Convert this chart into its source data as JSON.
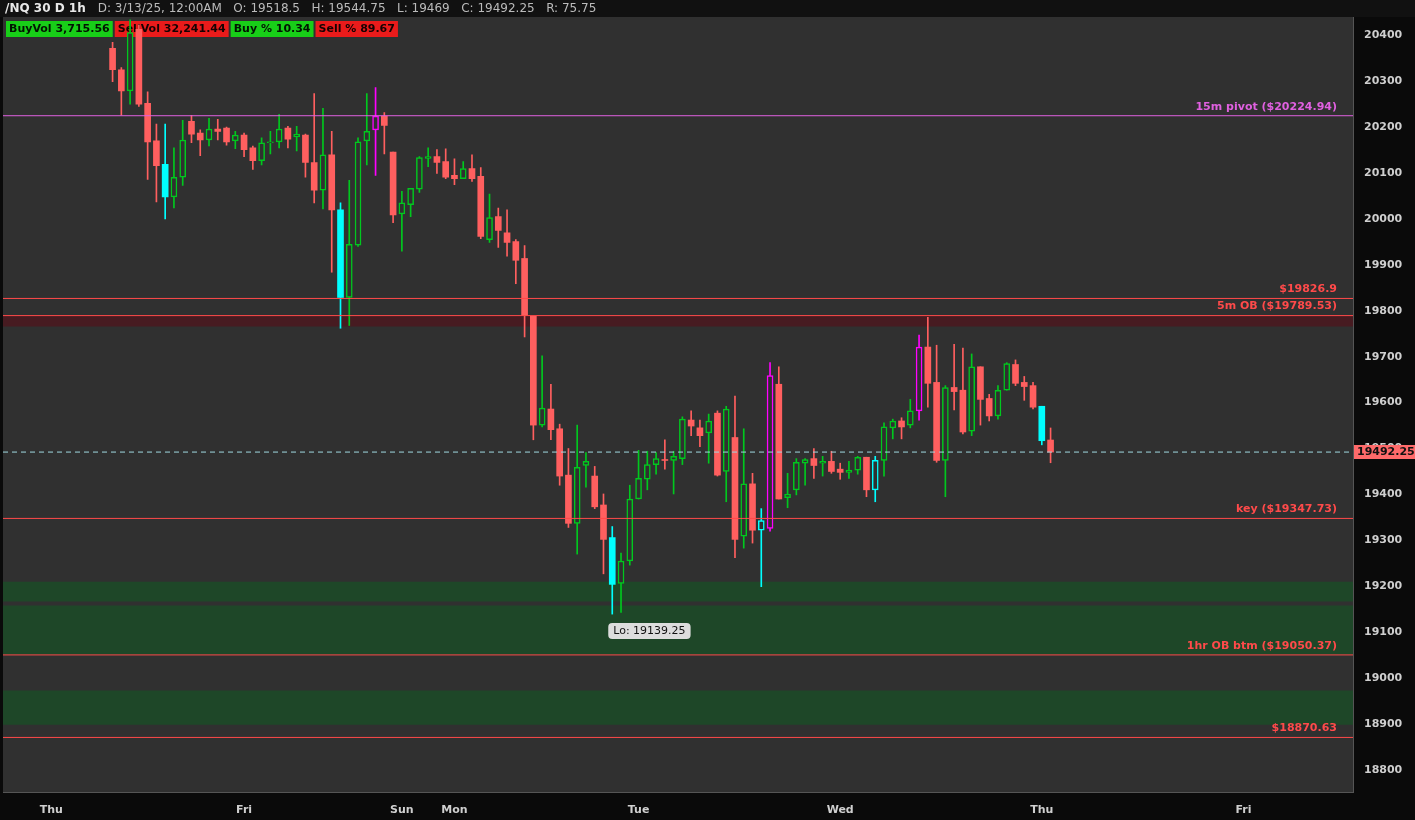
{
  "chart_data": {
    "type": "candlestick",
    "title": "/NQ 30 D 1h",
    "subtitle": "D: 3/13/25, 12:00AM   O: 19518.5   H: 19544.75   L: 19469   C: 19492.25   R: 75.75",
    "categories": [
      null,
      null,
      null,
      null,
      null,
      "Thu",
      null,
      null,
      null,
      null,
      null,
      null,
      null,
      null,
      null,
      null,
      null,
      null,
      null,
      null,
      null,
      null,
      null,
      null,
      null,
      null,
      null,
      "Fri",
      null,
      null,
      null,
      null,
      null,
      null,
      null,
      null,
      null,
      null,
      null,
      null,
      null,
      null,
      null,
      null,
      null,
      "Sun",
      null,
      null,
      null,
      null,
      null,
      "Mon",
      null,
      null,
      null,
      null,
      null,
      null,
      null,
      null,
      null,
      null,
      null,
      null,
      null,
      null,
      null,
      null,
      null,
      null,
      null,
      null,
      "Tue",
      null,
      null,
      null,
      null,
      null,
      null,
      null,
      null,
      null,
      null,
      null,
      null,
      null,
      null,
      null,
      null,
      null,
      null,
      null,
      null,
      null,
      null,
      "Wed",
      null,
      null,
      null,
      null,
      null,
      null,
      null,
      null,
      null,
      null,
      null,
      null,
      null,
      null,
      null,
      null,
      null,
      null,
      null,
      null,
      null,
      null,
      "Thu",
      null,
      null,
      null,
      null,
      null,
      null,
      null,
      null,
      null,
      null,
      null,
      null,
      null,
      null,
      null,
      null,
      null,
      null,
      null,
      null,
      null,
      null,
      "Fri",
      null,
      null,
      null,
      null,
      null,
      null,
      null,
      null,
      null,
      null,
      null,
      null
    ],
    "ohlc": [
      null,
      null,
      null,
      null,
      null,
      null,
      null,
      null,
      null,
      null,
      null,
      null,
      [
        20372,
        20385,
        20299,
        20325
      ],
      [
        20325,
        20330,
        20226,
        20279
      ],
      [
        20279,
        20434,
        20250,
        20406
      ],
      [
        20413,
        20423,
        20245,
        20250
      ],
      [
        20252,
        20277,
        20086,
        20168
      ],
      [
        20170,
        20207,
        20037,
        20116
      ],
      [
        20119,
        20207,
        20000,
        20048
      ],
      [
        20048,
        20155,
        20024,
        20091
      ],
      [
        20091,
        20215,
        20073,
        20172
      ],
      [
        20213,
        20226,
        20166,
        20185
      ],
      [
        20187,
        20194,
        20138,
        20172
      ],
      [
        20172,
        20219,
        20159,
        20196
      ],
      [
        20196,
        20217,
        20172,
        20191
      ],
      [
        20198,
        20200,
        20161,
        20168
      ],
      [
        20170,
        20191,
        20153,
        20183
      ],
      [
        20183,
        20187,
        20136,
        20151
      ],
      [
        20155,
        20159,
        20108,
        20127
      ],
      [
        20127,
        20177,
        20118,
        20166
      ],
      [
        20166,
        20191,
        20142,
        20168
      ],
      [
        20168,
        20228,
        20155,
        20196
      ],
      [
        20198,
        20202,
        20155,
        20174
      ],
      [
        20179,
        20202,
        20148,
        20185
      ],
      [
        20183,
        20185,
        20091,
        20123
      ],
      [
        20123,
        20273,
        20035,
        20063
      ],
      [
        20063,
        20241,
        20022,
        20140
      ],
      [
        20140,
        20191,
        19884,
        20020
      ],
      [
        20020,
        20035,
        19762,
        19829
      ],
      [
        19829,
        20084,
        19768,
        19945
      ],
      [
        19943,
        20177,
        19940,
        20168
      ],
      [
        20170,
        20273,
        20118,
        20191
      ],
      [
        20194,
        20286,
        20095,
        20224
      ],
      [
        20224,
        20232,
        20142,
        20204
      ],
      [
        20146,
        20146,
        19992,
        20009
      ],
      [
        20011,
        20060,
        19930,
        20035
      ],
      [
        20031,
        20067,
        20005,
        20067
      ],
      [
        20065,
        20136,
        20058,
        20134
      ],
      [
        20132,
        20155,
        20114,
        20136
      ],
      [
        20136,
        20151,
        20099,
        20123
      ],
      [
        20125,
        20153,
        20088,
        20091
      ],
      [
        20095,
        20131,
        20075,
        20088
      ],
      [
        20088,
        20125,
        20088,
        20110
      ],
      [
        20110,
        20140,
        20082,
        20088
      ],
      [
        20093,
        20112,
        19957,
        19962
      ],
      [
        19955,
        20054,
        19949,
        20003
      ],
      [
        20005,
        20024,
        19938,
        19975
      ],
      [
        19970,
        20020,
        19919,
        19949
      ],
      [
        19951,
        19955,
        19859,
        19910
      ],
      [
        19914,
        19942,
        19743,
        19790
      ],
      [
        19788,
        19788,
        19519,
        19551
      ],
      [
        19551,
        19702,
        19547,
        19588
      ],
      [
        19586,
        19640,
        19519,
        19541
      ],
      [
        19543,
        19553,
        19420,
        19440
      ],
      [
        19442,
        19500,
        19328,
        19337
      ],
      [
        19337,
        19551,
        19270,
        19459
      ],
      [
        19463,
        19491,
        19416,
        19472
      ],
      [
        19440,
        19461,
        19369,
        19373
      ],
      [
        19377,
        19401,
        19227,
        19302
      ],
      [
        19306,
        19330,
        19139.25,
        19204
      ],
      [
        19206,
        19272,
        19143,
        19255
      ],
      [
        19255,
        19420,
        19246,
        19390
      ],
      [
        19390,
        19496,
        19390,
        19435
      ],
      [
        19433,
        19494,
        19410,
        19465
      ],
      [
        19465,
        19491,
        19444,
        19478
      ],
      [
        19476,
        19519,
        19455,
        19474
      ],
      [
        19474,
        19494,
        19401,
        19483
      ],
      [
        19478,
        19569,
        19465,
        19564
      ],
      [
        19562,
        19582,
        19528,
        19549
      ],
      [
        19545,
        19562,
        19504,
        19528
      ],
      [
        19534,
        19575,
        19468,
        19560
      ],
      [
        19577,
        19582,
        19440,
        19442
      ],
      [
        19450,
        19592,
        19384,
        19586
      ],
      [
        19524,
        19614,
        19262,
        19302
      ],
      [
        19309,
        19543,
        19283,
        19423
      ],
      [
        19423,
        19446,
        19294,
        19322
      ],
      [
        19322,
        19369,
        19199,
        19343
      ],
      [
        19326,
        19687,
        19320,
        19659
      ],
      [
        19640,
        19678,
        19390,
        19390
      ],
      [
        19393,
        19446,
        19371,
        19401
      ],
      [
        19410,
        19478,
        19399,
        19470
      ],
      [
        19468,
        19478,
        19420,
        19476
      ],
      [
        19478,
        19500,
        19435,
        19463
      ],
      [
        19468,
        19483,
        19440,
        19472
      ],
      [
        19472,
        19494,
        19446,
        19450
      ],
      [
        19455,
        19468,
        19433,
        19448
      ],
      [
        19448,
        19472,
        19435,
        19453
      ],
      [
        19453,
        19483,
        19444,
        19481
      ],
      [
        19481,
        19481,
        19395,
        19410
      ],
      [
        19410,
        19483,
        19384,
        19474
      ],
      [
        19474,
        19556,
        19440,
        19547
      ],
      [
        19545,
        19564,
        19521,
        19560
      ],
      [
        19560,
        19567,
        19521,
        19547
      ],
      [
        19551,
        19607,
        19545,
        19582
      ],
      [
        19582,
        19747,
        19562,
        19721
      ],
      [
        19721,
        19786,
        19590,
        19642
      ],
      [
        19644,
        19725,
        19470,
        19474
      ],
      [
        19474,
        19637,
        19395,
        19633
      ],
      [
        19633,
        19727,
        19584,
        19624
      ],
      [
        19627,
        19719,
        19532,
        19536
      ],
      [
        19538,
        19706,
        19528,
        19678
      ],
      [
        19678,
        19678,
        19551,
        19607
      ],
      [
        19609,
        19618,
        19560,
        19571
      ],
      [
        19571,
        19637,
        19564,
        19627
      ],
      [
        19627,
        19687,
        19627,
        19685
      ],
      [
        19683,
        19693,
        19637,
        19642
      ],
      [
        19644,
        19657,
        19605,
        19635
      ],
      [
        19637,
        19644,
        19586,
        19590
      ],
      [
        19592,
        19592,
        19508,
        19517
      ],
      [
        19518.5,
        19544.75,
        19469,
        19492.25
      ],
      null,
      null,
      null,
      null,
      null,
      null,
      null,
      null,
      null,
      null,
      null,
      null,
      null,
      null,
      null,
      null,
      null,
      null,
      null,
      null,
      null,
      null,
      null,
      null,
      null,
      null,
      null,
      null,
      null,
      null,
      null,
      null,
      null,
      null
    ],
    "colors": [
      null,
      null,
      null,
      null,
      null,
      null,
      null,
      null,
      null,
      null,
      null,
      null,
      "#ff5f5f",
      "#ff5f5f",
      "#00c81e",
      "#ff5f5f",
      "#ff5f5f",
      "#ff5f5f",
      "#00ffff",
      "#00c81e",
      "#00c81e",
      "#ff5f5f",
      "#ff5f5f",
      "#00c81e",
      "#ff5f5f",
      "#ff5f5f",
      "#00c81e",
      "#ff5f5f",
      "#ff5f5f",
      "#00c81e",
      "#00c81e",
      "#00c81e",
      "#ff5f5f",
      "#00c81e",
      "#ff5f5f",
      "#ff5f5f",
      "#00c81e",
      "#ff5f5f",
      "#00ffff",
      "#00c81e",
      "#00c81e",
      "#00c81e",
      "#ff00ff",
      "#ff5f5f",
      "#ff5f5f",
      "#00c81e",
      "#00c81e",
      "#00c81e",
      "#00c81e",
      "#ff5f5f",
      "#ff5f5f",
      "#ff5f5f",
      "#00c81e",
      "#ff5f5f",
      "#ff5f5f",
      "#00c81e",
      "#ff5f5f",
      "#ff5f5f",
      "#ff5f5f",
      "#ff5f5f",
      "#ff5f5f",
      "#00c81e",
      "#ff5f5f",
      "#ff5f5f",
      "#ff5f5f",
      "#00c81e",
      "#00c81e",
      "#ff5f5f",
      "#ff5f5f",
      "#00ffff",
      "#00c81e",
      "#00c81e",
      "#00c81e",
      "#00c81e",
      "#00c81e",
      "#ff5f5f",
      "#00c81e",
      "#00c81e",
      "#ff5f5f",
      "#ff5f5f",
      "#00c81e",
      "#ff5f5f",
      "#00c81e",
      "#ff5f5f",
      "#00c81e",
      "#ff5f5f",
      "#00ffff",
      "#ff00ff",
      "#ff5f5f",
      "#00c81e",
      "#00c81e",
      "#00c81e",
      "#ff5f5f",
      "#00c81e",
      "#ff5f5f",
      "#ff5f5f",
      "#00c81e",
      "#00c81e",
      "#ff5f5f",
      "#00ffff",
      "#00c81e",
      "#00c81e",
      "#ff5f5f",
      "#00c81e",
      "#ff00ff",
      "#ff5f5f",
      "#ff5f5f",
      "#00c81e",
      "#ff5f5f",
      "#ff5f5f",
      "#00c81e",
      "#ff5f5f",
      "#ff5f5f",
      "#00c81e",
      "#00c81e",
      "#ff5f5f",
      "#ff5f5f",
      "#ff5f5f",
      "#00ffff",
      "#ff5f5f",
      null,
      null,
      null,
      null,
      null,
      null,
      null,
      null,
      null,
      null,
      null,
      null,
      null,
      null,
      null,
      null,
      null,
      null,
      null,
      null,
      null,
      null,
      null,
      null,
      null,
      null,
      null,
      null,
      null,
      null,
      null,
      null,
      null,
      null
    ],
    "ylim": [
      18750,
      20440
    ],
    "yticks": [
      18800,
      18900,
      19000,
      19100,
      19200,
      19300,
      19400,
      19500,
      19600,
      19700,
      19800,
      19900,
      20000,
      20100,
      20200,
      20300,
      20400
    ],
    "ref_lines": [
      {
        "axis": "y",
        "value": 20224.94,
        "label": "15m pivot ($20224.94)",
        "color": "#e060e0"
      },
      {
        "axis": "y",
        "value": 19826.9,
        "label": "$19826.9",
        "color": "#ff4a4a"
      },
      {
        "axis": "y",
        "value": 19789.53,
        "label": "5m OB ($19789.53)",
        "color": "#ff4a4a"
      },
      {
        "axis": "y",
        "value": 19492.25,
        "label": "19492.25",
        "color": "#9fd8e0",
        "line_style": "dashed"
      },
      {
        "axis": "y",
        "value": 19347.73,
        "label": "key ($19347.73)",
        "color": "#ff4a4a"
      },
      {
        "axis": "y",
        "value": 19050.37,
        "label": "1hr OB btm ($19050.37)",
        "color": "#ff4a4a"
      },
      {
        "axis": "y",
        "value": 18870.63,
        "label": "$18870.63",
        "color": "#ff4a4a"
      }
    ],
    "bands": [
      {
        "axis": "y",
        "from": 19766,
        "to": 19789.53,
        "color": "#4a1a20"
      },
      {
        "axis": "y",
        "from": 19167,
        "to": 19210,
        "color": "#1d4a28"
      },
      {
        "axis": "y",
        "from": 19051,
        "to": 19158,
        "color": "#1d4a28"
      },
      {
        "axis": "y",
        "from": 18898,
        "to": 18973,
        "color": "#1d4a28"
      }
    ],
    "annotations": [
      "BuyVol 3,715.56",
      "SellVol 32,241.44",
      "Buy % 10.34",
      "Sell % 89.67",
      "Lo: 19139.25"
    ]
  }
}
